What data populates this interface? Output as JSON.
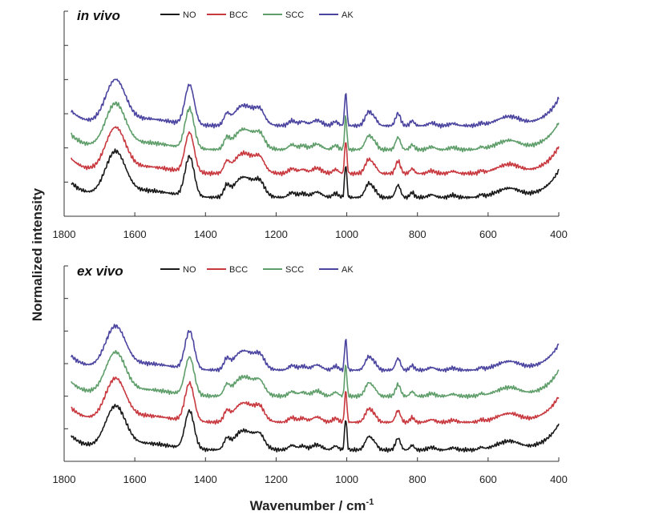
{
  "figure": {
    "ylabel": "Normalized intensity",
    "xlabel_main": "Wavenumber / cm",
    "xlabel_sup": "-1"
  },
  "colors": {
    "NO": "#1a1a1a",
    "BCC": "#c8393f",
    "SCC": "#5f9e6a",
    "AK": "#4b45a0",
    "axis": "#333333"
  },
  "chart_data": [
    {
      "type": "line",
      "title": "in vivo",
      "xlabel": "",
      "ylabel": "Normalized intensity",
      "xlim": [
        1800,
        400
      ],
      "ylim": [
        0,
        6
      ],
      "x_ticks": [
        1800,
        1600,
        1400,
        1200,
        1000,
        800,
        600,
        400
      ],
      "y_ticks_count": 6,
      "grid": false,
      "legend_position": "top",
      "series": [
        {
          "name": "NO",
          "offset": 0.55,
          "values_note": "Raman spectrum, arbitrary units"
        },
        {
          "name": "BCC",
          "offset": 1.25
        },
        {
          "name": "SCC",
          "offset": 1.95
        },
        {
          "name": "AK",
          "offset": 2.65
        }
      ],
      "peaks_cm-1": [
        1655,
        1445,
        1302,
        1265,
        1003,
        938,
        855
      ]
    },
    {
      "type": "line",
      "title": "ex vivo",
      "xlabel": "Wavenumber / cm-1",
      "ylabel": "Normalized intensity",
      "xlim": [
        1800,
        400
      ],
      "ylim": [
        0,
        6
      ],
      "x_ticks": [
        1800,
        1600,
        1400,
        1200,
        1000,
        800,
        600,
        400
      ],
      "y_ticks_count": 6,
      "grid": false,
      "legend_position": "top",
      "series": [
        {
          "name": "NO",
          "offset": 0.35
        },
        {
          "name": "BCC",
          "offset": 1.2
        },
        {
          "name": "SCC",
          "offset": 2.0
        },
        {
          "name": "AK",
          "offset": 2.8
        }
      ],
      "peaks_cm-1": [
        1655,
        1445,
        1302,
        1265,
        1003,
        938,
        855
      ]
    }
  ]
}
